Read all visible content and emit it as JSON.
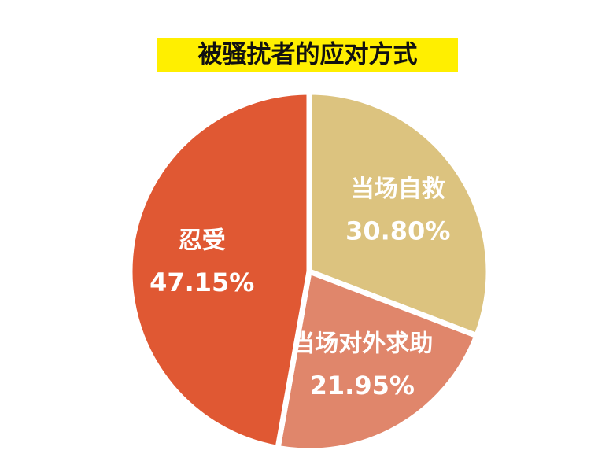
{
  "chart_data": {
    "type": "pie",
    "title": "被骚扰者的应对方式",
    "categories": [
      "当场自救",
      "当场对外求助",
      "忍受"
    ],
    "values": [
      30.8,
      21.95,
      47.15
    ],
    "value_labels": [
      "30.80%",
      "21.95%",
      "47.15%"
    ],
    "colors": [
      "#dcc37f",
      "#e0866b",
      "#e05833"
    ]
  }
}
